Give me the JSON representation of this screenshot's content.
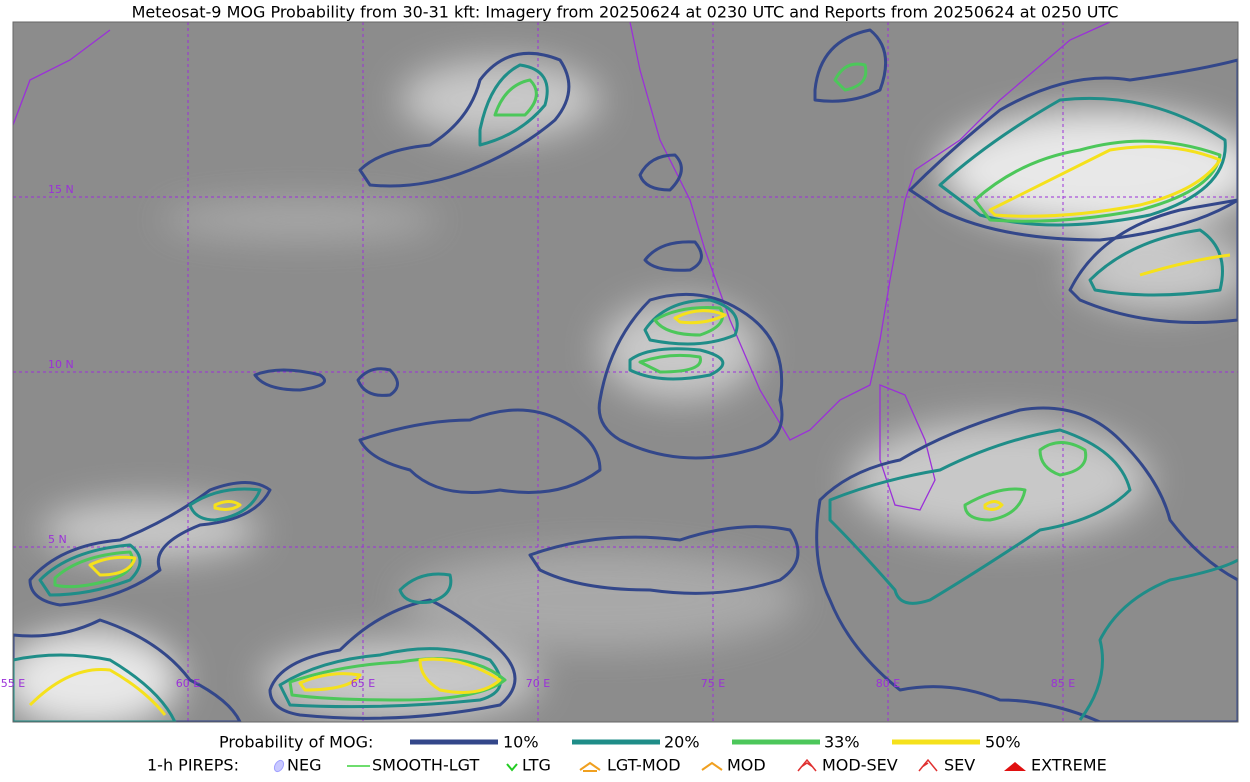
{
  "title": "Meteosat-9 MOG Probability from 30-31 kft: Imagery from 20250624 at 0230 UTC and Reports from 20250624 at 0250 UTC",
  "map": {
    "lat_labels": [
      "15 N",
      "10 N",
      "5 N"
    ],
    "lon_labels": [
      "55 E",
      "60 E",
      "65 E",
      "70 E",
      "75 E",
      "80 E",
      "85 E"
    ]
  },
  "legend": {
    "probability": {
      "title": "Probability of MOG:",
      "items": [
        "10%",
        "20%",
        "33%",
        "50%"
      ]
    },
    "pireps": {
      "title": "1-h PIREPS:",
      "items": [
        "NEG",
        "SMOOTH-LGT",
        "LTG",
        "LGT-MOD",
        "MOD",
        "MOD-SEV",
        "SEV",
        "EXTREME"
      ]
    }
  }
}
